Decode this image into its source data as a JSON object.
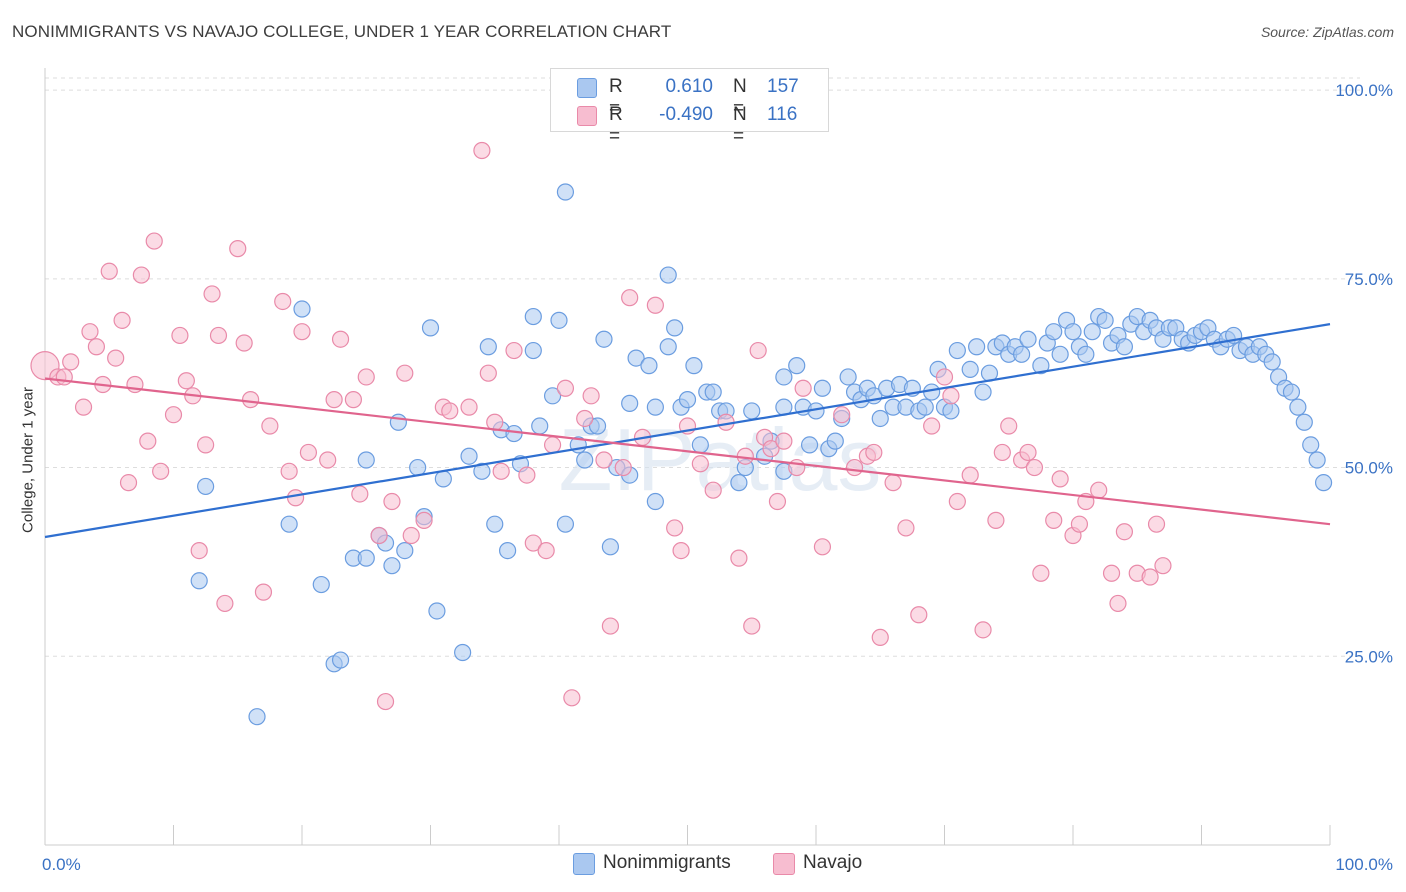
{
  "title": "NONIMMIGRANTS VS NAVAJO COLLEGE, UNDER 1 YEAR CORRELATION CHART",
  "source": "Source: ZipAtlas.com",
  "watermark": "ZIPatlas",
  "legend": {
    "rows": [
      {
        "r_label": "R =",
        "r_value": "0.610",
        "n_label": "N =",
        "n_value": "157",
        "color": "#aac8f0",
        "stroke": "#6b9de0"
      },
      {
        "r_label": "R =",
        "r_value": "-0.490",
        "n_label": "N =",
        "n_value": "116",
        "color": "#f7bdd0",
        "stroke": "#e98aa9"
      }
    ]
  },
  "bottom_legend": [
    {
      "label": "Nonimmigrants",
      "color": "#aac8f0",
      "stroke": "#6b9de0"
    },
    {
      "label": "Navajo",
      "color": "#f7bdd0",
      "stroke": "#e98aa9"
    }
  ],
  "chart_data": {
    "type": "scatter",
    "xlabel": "",
    "ylabel": "College, Under 1 year",
    "xlim": [
      0,
      100
    ],
    "ylim": [
      0,
      102
    ],
    "x_tick_labels": [
      {
        "value": 0,
        "label": "0.0%"
      },
      {
        "value": 100,
        "label": "100.0%"
      }
    ],
    "y_tick_labels": [
      {
        "value": 25,
        "label": "25.0%"
      },
      {
        "value": 50,
        "label": "50.0%"
      },
      {
        "value": 75,
        "label": "75.0%"
      },
      {
        "value": 100,
        "label": "100.0%"
      }
    ],
    "grid": true,
    "series": [
      {
        "name": "Nonimmigrants",
        "color": "#aac8f0",
        "stroke": "#6b9de0",
        "line_color": "#2f6fd0",
        "trend": {
          "x": [
            0,
            100
          ],
          "y": [
            40.8,
            69.0
          ]
        },
        "points": [
          [
            12,
            35
          ],
          [
            12.5,
            47.5
          ],
          [
            16.5,
            17
          ],
          [
            19,
            42.5
          ],
          [
            20,
            71
          ],
          [
            21.5,
            34.5
          ],
          [
            22.5,
            24
          ],
          [
            23,
            24.5
          ],
          [
            24,
            38
          ],
          [
            25,
            38
          ],
          [
            25,
            51
          ],
          [
            26,
            41
          ],
          [
            26.5,
            40
          ],
          [
            27,
            37
          ],
          [
            27.5,
            56
          ],
          [
            28,
            39
          ],
          [
            29,
            50
          ],
          [
            29.5,
            43.5
          ],
          [
            30,
            68.5
          ],
          [
            30.5,
            31
          ],
          [
            31,
            48.5
          ],
          [
            32.5,
            25.5
          ],
          [
            33,
            51.5
          ],
          [
            34,
            49.5
          ],
          [
            34.5,
            66
          ],
          [
            35,
            42.5
          ],
          [
            35.5,
            55
          ],
          [
            36,
            39
          ],
          [
            36.5,
            54.5
          ],
          [
            37,
            50.5
          ],
          [
            38,
            65.5
          ],
          [
            38,
            70
          ],
          [
            38.5,
            55.5
          ],
          [
            39.5,
            59.5
          ],
          [
            40,
            69.5
          ],
          [
            40.5,
            42.5
          ],
          [
            40.5,
            86.5
          ],
          [
            41.5,
            53
          ],
          [
            42,
            51
          ],
          [
            42.5,
            55.5
          ],
          [
            43,
            55.5
          ],
          [
            43.5,
            67
          ],
          [
            44,
            39.5
          ],
          [
            44.5,
            50
          ],
          [
            45.5,
            49
          ],
          [
            45.5,
            58.5
          ],
          [
            46,
            64.5
          ],
          [
            47,
            63.5
          ],
          [
            47.5,
            45.5
          ],
          [
            47.5,
            58
          ],
          [
            48.5,
            75.5
          ],
          [
            48.5,
            66
          ],
          [
            49,
            68.5
          ],
          [
            49.5,
            58
          ],
          [
            50,
            59
          ],
          [
            50.5,
            63.5
          ],
          [
            51,
            53
          ],
          [
            51.5,
            60
          ],
          [
            52,
            60
          ],
          [
            52.5,
            57.5
          ],
          [
            53,
            57.5
          ],
          [
            54,
            48
          ],
          [
            54.5,
            50
          ],
          [
            55,
            57.5
          ],
          [
            56,
            51.5
          ],
          [
            56.5,
            53.5
          ],
          [
            57.5,
            58
          ],
          [
            57.5,
            49.5
          ],
          [
            57.5,
            62
          ],
          [
            58.5,
            63.5
          ],
          [
            59,
            58
          ],
          [
            59.5,
            53
          ],
          [
            60,
            57.5
          ],
          [
            60.5,
            60.5
          ],
          [
            61,
            52.5
          ],
          [
            61.5,
            53.5
          ],
          [
            62,
            56.5
          ],
          [
            62.5,
            62
          ],
          [
            63,
            60
          ],
          [
            63.5,
            59
          ],
          [
            64,
            60.5
          ],
          [
            64.5,
            59.5
          ],
          [
            65,
            56.5
          ],
          [
            65.5,
            60.5
          ],
          [
            66,
            58
          ],
          [
            66.5,
            61
          ],
          [
            67,
            58
          ],
          [
            67.5,
            60.5
          ],
          [
            68,
            57.5
          ],
          [
            68.5,
            58
          ],
          [
            69,
            60
          ],
          [
            69.5,
            63
          ],
          [
            70,
            58
          ],
          [
            70.5,
            57.5
          ],
          [
            71,
            65.5
          ],
          [
            72,
            63
          ],
          [
            72.5,
            66
          ],
          [
            73,
            60
          ],
          [
            73.5,
            62.5
          ],
          [
            74,
            66
          ],
          [
            74.5,
            66.5
          ],
          [
            75,
            65
          ],
          [
            75.5,
            66
          ],
          [
            76,
            65
          ],
          [
            76.5,
            67
          ],
          [
            77.5,
            63.5
          ],
          [
            78,
            66.5
          ],
          [
            78.5,
            68
          ],
          [
            79,
            65
          ],
          [
            79.5,
            69.5
          ],
          [
            80,
            68
          ],
          [
            80.5,
            66
          ],
          [
            81,
            65
          ],
          [
            81.5,
            68
          ],
          [
            82,
            70
          ],
          [
            82.5,
            69.5
          ],
          [
            83,
            66.5
          ],
          [
            83.5,
            67.5
          ],
          [
            84,
            66
          ],
          [
            84.5,
            69
          ],
          [
            85,
            70
          ],
          [
            85.5,
            68
          ],
          [
            86,
            69.5
          ],
          [
            86.5,
            68.5
          ],
          [
            87,
            67
          ],
          [
            87.5,
            68.5
          ],
          [
            88,
            68.5
          ],
          [
            88.5,
            67
          ],
          [
            89,
            66.5
          ],
          [
            89.5,
            67.5
          ],
          [
            90,
            68
          ],
          [
            90.5,
            68.5
          ],
          [
            91,
            67
          ],
          [
            91.5,
            66
          ],
          [
            92,
            67
          ],
          [
            92.5,
            67.5
          ],
          [
            93,
            65.5
          ],
          [
            93.5,
            66
          ],
          [
            94,
            65
          ],
          [
            94.5,
            66
          ],
          [
            95,
            65
          ],
          [
            95.5,
            64
          ],
          [
            96,
            62
          ],
          [
            96.5,
            60.5
          ],
          [
            97,
            60
          ],
          [
            97.5,
            58
          ],
          [
            98,
            56
          ],
          [
            98.5,
            53
          ],
          [
            99,
            51
          ],
          [
            99.5,
            48
          ]
        ]
      },
      {
        "name": "Navajo",
        "color": "#f7bdd0",
        "stroke": "#e98aa9",
        "line_color": "#e0648d",
        "trend": {
          "x": [
            0,
            100
          ],
          "y": [
            61.8,
            42.5
          ]
        },
        "points": [
          [
            0,
            63.5
          ],
          [
            1,
            62
          ],
          [
            1.5,
            62
          ],
          [
            2,
            64
          ],
          [
            3,
            58
          ],
          [
            3.5,
            68
          ],
          [
            4,
            66
          ],
          [
            4.5,
            61
          ],
          [
            5,
            76
          ],
          [
            5.5,
            64.5
          ],
          [
            6,
            69.5
          ],
          [
            6.5,
            48
          ],
          [
            7,
            61
          ],
          [
            7.5,
            75.5
          ],
          [
            8,
            53.5
          ],
          [
            8.5,
            80
          ],
          [
            9,
            49.5
          ],
          [
            10,
            57
          ],
          [
            10.5,
            67.5
          ],
          [
            11,
            61.5
          ],
          [
            11.5,
            59.5
          ],
          [
            12,
            39
          ],
          [
            12.5,
            53
          ],
          [
            13,
            73
          ],
          [
            13.5,
            67.5
          ],
          [
            14,
            32
          ],
          [
            15,
            79
          ],
          [
            15.5,
            66.5
          ],
          [
            16,
            59
          ],
          [
            17,
            33.5
          ],
          [
            17.5,
            55.5
          ],
          [
            18.5,
            72
          ],
          [
            19,
            49.5
          ],
          [
            19.5,
            46
          ],
          [
            20,
            68
          ],
          [
            20.5,
            52
          ],
          [
            22,
            51
          ],
          [
            22.5,
            59
          ],
          [
            23,
            67
          ],
          [
            24,
            59
          ],
          [
            24.5,
            46.5
          ],
          [
            25,
            62
          ],
          [
            26,
            41
          ],
          [
            26.5,
            19
          ],
          [
            27,
            45.5
          ],
          [
            28,
            62.5
          ],
          [
            28.5,
            41
          ],
          [
            29.5,
            43
          ],
          [
            31,
            58
          ],
          [
            31.5,
            57.5
          ],
          [
            33,
            58
          ],
          [
            34,
            92
          ],
          [
            34.5,
            62.5
          ],
          [
            35,
            56
          ],
          [
            35.5,
            49.5
          ],
          [
            36.5,
            65.5
          ],
          [
            37.5,
            49
          ],
          [
            38,
            40
          ],
          [
            39,
            39
          ],
          [
            39.5,
            53
          ],
          [
            40.5,
            60.5
          ],
          [
            41,
            19.5
          ],
          [
            42,
            56.5
          ],
          [
            42.5,
            59.5
          ],
          [
            43.5,
            51
          ],
          [
            44,
            29
          ],
          [
            45,
            50
          ],
          [
            45.5,
            72.5
          ],
          [
            46.5,
            54
          ],
          [
            47.5,
            71.5
          ],
          [
            49,
            42
          ],
          [
            49.5,
            39
          ],
          [
            50,
            55.5
          ],
          [
            51,
            50.5
          ],
          [
            52,
            47
          ],
          [
            53,
            56
          ],
          [
            54,
            38
          ],
          [
            54.5,
            51.5
          ],
          [
            55,
            29
          ],
          [
            55.5,
            65.5
          ],
          [
            56,
            54
          ],
          [
            56.5,
            52.5
          ],
          [
            57,
            45.5
          ],
          [
            57.5,
            53.5
          ],
          [
            58.5,
            50
          ],
          [
            59,
            60.5
          ],
          [
            60.5,
            39.5
          ],
          [
            62,
            57
          ],
          [
            63,
            50
          ],
          [
            64,
            51.5
          ],
          [
            64.5,
            52
          ],
          [
            65,
            27.5
          ],
          [
            66,
            48
          ],
          [
            67,
            42
          ],
          [
            68,
            30.5
          ],
          [
            69,
            55.5
          ],
          [
            70,
            62
          ],
          [
            70.5,
            59.5
          ],
          [
            71,
            45.5
          ],
          [
            72,
            49
          ],
          [
            73,
            28.5
          ],
          [
            74,
            43
          ],
          [
            74.5,
            52
          ],
          [
            75,
            55.5
          ],
          [
            76,
            51
          ],
          [
            76.5,
            52
          ],
          [
            77,
            50
          ],
          [
            77.5,
            36
          ],
          [
            78.5,
            43
          ],
          [
            79,
            48.5
          ],
          [
            80,
            41
          ],
          [
            80.5,
            42.5
          ],
          [
            81,
            45.5
          ],
          [
            82,
            47
          ],
          [
            83,
            36
          ],
          [
            83.5,
            32
          ],
          [
            84,
            41.5
          ],
          [
            85,
            36
          ],
          [
            86,
            35.5
          ],
          [
            86.5,
            42.5
          ],
          [
            87,
            37
          ]
        ]
      }
    ]
  }
}
